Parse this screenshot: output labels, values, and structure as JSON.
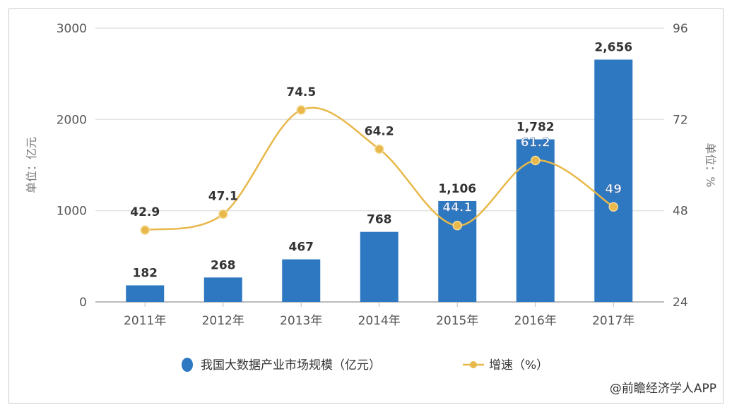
{
  "chart_data": {
    "type": "bar+line",
    "categories": [
      "2011年",
      "2012年",
      "2013年",
      "2014年",
      "2015年",
      "2016年",
      "2017年"
    ],
    "series": [
      {
        "name": "我国大数据产业市场规模（亿元）",
        "type": "bar",
        "axis": "left",
        "color": "#2e78c2",
        "values": [
          182,
          268,
          467,
          768,
          1106,
          1782,
          2656
        ],
        "labels": [
          "182",
          "268",
          "467",
          "768",
          "1,106",
          "1,782",
          "2,656"
        ]
      },
      {
        "name": "增速（%）",
        "type": "line",
        "axis": "right",
        "color": "#e8b84a",
        "values": [
          42.9,
          47.1,
          74.5,
          64.2,
          44.1,
          61.2,
          49
        ],
        "labels": [
          "42.9",
          "47.1",
          "74.5",
          "64.2",
          "44.1",
          "61.2",
          "49"
        ]
      }
    ],
    "left_axis": {
      "label": "单位：亿元",
      "range": [
        0,
        3000
      ],
      "ticks": [
        "0",
        "1000",
        "2000",
        "3000"
      ]
    },
    "right_axis": {
      "label": "单位：%",
      "range": [
        24,
        96
      ],
      "ticks": [
        "24",
        "48",
        "72",
        "96"
      ]
    },
    "grid": true,
    "legend_position": "bottom"
  },
  "credit": "@前瞻经济学人APP"
}
